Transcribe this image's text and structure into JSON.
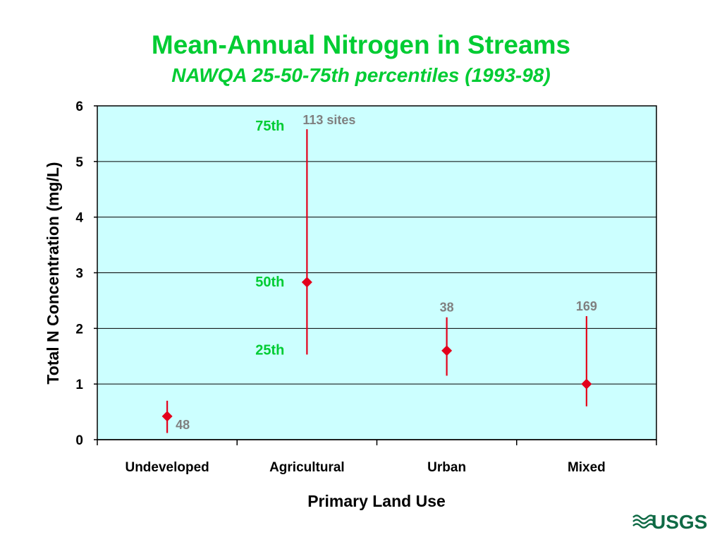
{
  "chart_data": {
    "type": "range",
    "title": "Mean-Annual Nitrogen in Streams",
    "subtitle": "NAWQA 25-50-75th percentiles (1993-98)",
    "xlabel": "Primary Land Use",
    "ylabel": "Total N Concentration (mg/L)",
    "ylim": [
      0,
      6
    ],
    "yticks": [
      "0",
      "1",
      "2",
      "3",
      "4",
      "5",
      "6"
    ],
    "grid": true,
    "categories": [
      "Undeveloped",
      "Agricultural",
      "Urban",
      "Mixed"
    ],
    "series": [
      {
        "p25": 0.12,
        "p50": 0.42,
        "p75": 0.7,
        "count_label": "48"
      },
      {
        "p25": 1.53,
        "p50": 2.83,
        "p75": 5.58,
        "count_label": "113 sites"
      },
      {
        "p25": 1.15,
        "p50": 1.6,
        "p75": 2.2,
        "count_label": "38"
      },
      {
        "p25": 0.6,
        "p50": 1.0,
        "p75": 2.22,
        "count_label": "169"
      }
    ],
    "percentile_labels": {
      "p75": "75th",
      "p50": "50th",
      "p25": "25th"
    },
    "colors": {
      "plot_background": "#ccffff",
      "range_line": "#e3001b",
      "title": "#00cc33",
      "percentile_label": "#00cc33",
      "count_label": "#808080"
    }
  },
  "logo": {
    "text": "USGS",
    "color": "#0f6a45"
  }
}
